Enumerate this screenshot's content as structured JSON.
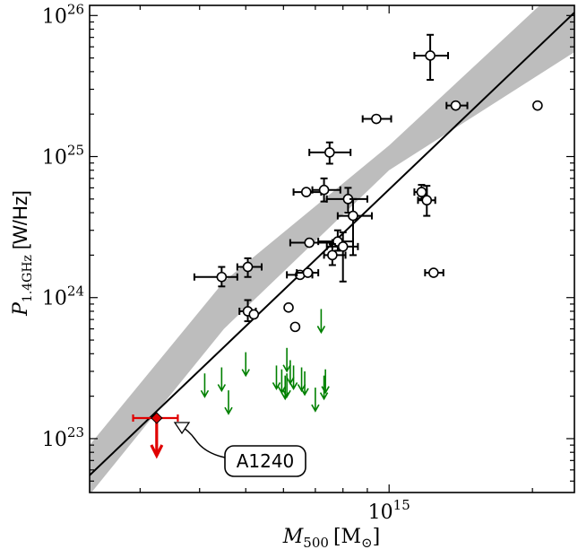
{
  "chart_data": {
    "type": "scatter",
    "xscale": "log",
    "yscale": "log",
    "xlim": [
      235000000000000.0,
      2450000000000000.0
    ],
    "ylim": [
      4.15e+22,
      1.18e+26
    ],
    "xlabel_var": "M",
    "xlabel_sub": "500",
    "xlabel_unit": "[M",
    "xlabel_unit_sub": "⊙",
    "xlabel_close": "]",
    "ylabel_var": "P",
    "ylabel_sub": "1.4GHz",
    "ylabel_unit": "[W/Hz]",
    "xticks": [
      {
        "value": 1000000000000000.0,
        "base": "10",
        "exp": "15"
      }
    ],
    "yticks": [
      {
        "value": 1e+23,
        "base": "10",
        "exp": "23"
      },
      {
        "value": 1e+24,
        "base": "10",
        "exp": "24"
      },
      {
        "value": 1e+25,
        "base": "10",
        "exp": "25"
      },
      {
        "value": 1e+26,
        "base": "10",
        "exp": "26"
      }
    ],
    "fit_line": {
      "x": [
        235000000000000.0,
        2450000000000000.0
      ],
      "y": [
        5.5e+22,
        1.05e+26
      ],
      "color": "#000000"
    },
    "fit_band": {
      "x": [
        235000000000000.0,
        450000000000000.0,
        1000000000000000.0,
        2450000000000000.0
      ],
      "lower": [
        4e+22,
        6e+23,
        8e+24,
        5.5e+25
      ],
      "upper": [
        9e+22,
        1.3e+24,
        1.2e+25,
        2e+26
      ],
      "color": "#bdbdbd"
    },
    "series": [
      {
        "marker": "open-circle",
        "color": "#000000",
        "points": [
          {
            "x": 1220000000000000.0,
            "y": 5.2e+25,
            "xerr": [
              1130000000000000.0,
              1330000000000000.0
            ],
            "yerr": [
              3.5e+25,
              7.3e+25
            ]
          },
          {
            "x": 1380000000000000.0,
            "y": 2.3e+25,
            "xerr": [
              1320000000000000.0,
              1460000000000000.0
            ]
          },
          {
            "x": 2050000000000000.0,
            "y": 2.3e+25
          },
          {
            "x": 940000000000000.0,
            "y": 1.85e+25,
            "xerr": [
              880000000000000.0,
              1010000000000000.0
            ]
          },
          {
            "x": 750000000000000.0,
            "y": 1.07e+25,
            "xerr": [
              680000000000000.0,
              830000000000000.0
            ],
            "yerr": [
              8.9e+24,
              1.26e+25
            ]
          },
          {
            "x": 670000000000000.0,
            "y": 5.6e+24,
            "xerr": [
              630000000000000.0,
              720000000000000.0
            ]
          },
          {
            "x": 730000000000000.0,
            "y": 5.8e+24,
            "xerr": [
              690000000000000.0,
              790000000000000.0
            ],
            "yerr": [
              4.8e+24,
              7e+24
            ]
          },
          {
            "x": 820000000000000.0,
            "y": 5e+24,
            "xerr": [
              740000000000000.0,
              900000000000000.0
            ],
            "yerr": [
              4e+24,
              6e+24
            ]
          },
          {
            "x": 840000000000000.0,
            "y": 3.8e+24,
            "xerr": [
              780000000000000.0,
              920000000000000.0
            ],
            "yerr": [
              2e+24,
              5e+24
            ]
          },
          {
            "x": 1170000000000000.0,
            "y": 5.6e+24,
            "xerr": [
              1130000000000000.0,
              1200000000000000.0
            ],
            "yerr": [
              5e+24,
              6.3e+24
            ]
          },
          {
            "x": 1200000000000000.0,
            "y": 4.9e+24,
            "xerr": [
              1150000000000000.0,
              1250000000000000.0
            ],
            "yerr": [
              3.8e+24,
              6.2e+24
            ]
          },
          {
            "x": 680000000000000.0,
            "y": 2.45e+24,
            "xerr": [
              620000000000000.0,
              760000000000000.0
            ]
          },
          {
            "x": 780000000000000.0,
            "y": 2.5e+24,
            "xerr": [
              710000000000000.0,
              840000000000000.0
            ],
            "yerr": [
              2.15e+24,
              3e+24
            ]
          },
          {
            "x": 800000000000000.0,
            "y": 2.3e+24,
            "xerr": [
              740000000000000.0,
              860000000000000.0
            ],
            "yerr": [
              1.3e+24,
              2.9e+24
            ]
          },
          {
            "x": 760000000000000.0,
            "y": 2e+24,
            "xerr": [
              730000000000000.0,
              810000000000000.0
            ],
            "yerr": [
              1.7e+24,
              2.4e+24
            ]
          },
          {
            "x": 1240000000000000.0,
            "y": 1.5e+24,
            "xerr": [
              1190000000000000.0,
              1300000000000000.0
            ]
          },
          {
            "x": 650000000000000.0,
            "y": 1.45e+24,
            "xerr": [
              610000000000000.0,
              690000000000000.0
            ]
          },
          {
            "x": 675000000000000.0,
            "y": 1.5e+24,
            "xerr": [
              640000000000000.0,
              710000000000000.0
            ]
          },
          {
            "x": 445000000000000.0,
            "y": 1.4e+24,
            "xerr": [
              390000000000000.0,
              480000000000000.0
            ],
            "yerr": [
              1.2e+24,
              1.65e+24
            ]
          },
          {
            "x": 505000000000000.0,
            "y": 1.65e+24,
            "xerr": [
              480000000000000.0,
              540000000000000.0
            ],
            "yerr": [
              1.4e+24,
              1.9e+24
            ]
          },
          {
            "x": 505000000000000.0,
            "y": 8e+23,
            "xerr": [
              485000000000000.0,
              525000000000000.0
            ],
            "yerr": [
              6.8e+23,
              9.6e+23
            ]
          },
          {
            "x": 520000000000000.0,
            "y": 7.6e+23
          },
          {
            "x": 615000000000000.0,
            "y": 8.5e+23
          },
          {
            "x": 635000000000000.0,
            "y": 6.2e+23
          }
        ]
      },
      {
        "marker": "upper-limit-arrow",
        "color": "#008000",
        "points": [
          {
            "x": 410000000000000.0,
            "y": 2.9e+23
          },
          {
            "x": 445000000000000.0,
            "y": 3.2e+23
          },
          {
            "x": 460000000000000.0,
            "y": 2.2e+23
          },
          {
            "x": 500000000000000.0,
            "y": 4.1e+23
          },
          {
            "x": 580000000000000.0,
            "y": 3.3e+23
          },
          {
            "x": 595000000000000.0,
            "y": 3.1e+23
          },
          {
            "x": 610000000000000.0,
            "y": 4.4e+23
          },
          {
            "x": 605000000000000.0,
            "y": 2.8e+23
          },
          {
            "x": 620000000000000.0,
            "y": 3.6e+23
          },
          {
            "x": 610000000000000.0,
            "y": 2.9e+23
          },
          {
            "x": 630000000000000.0,
            "y": 3.3e+23
          },
          {
            "x": 655000000000000.0,
            "y": 3.2e+23
          },
          {
            "x": 665000000000000.0,
            "y": 3e+23
          },
          {
            "x": 720000000000000.0,
            "y": 8.3e+23
          },
          {
            "x": 735000000000000.0,
            "y": 3.1e+23
          },
          {
            "x": 700000000000000.0,
            "y": 2.3e+23
          },
          {
            "x": 730000000000000.0,
            "y": 2.8e+23
          }
        ]
      },
      {
        "marker": "red-diamond-limit",
        "color": "#e00000",
        "points": [
          {
            "x": 325000000000000.0,
            "y": 1.4e+23,
            "xerr": [
              290000000000000.0,
              360000000000000.0
            ],
            "label": "A1240"
          }
        ]
      }
    ]
  }
}
